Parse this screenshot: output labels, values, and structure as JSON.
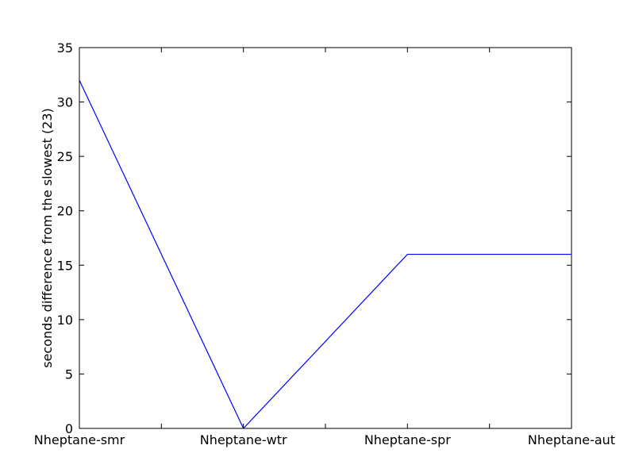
{
  "chart_data": {
    "type": "line",
    "title": "",
    "xlabel": "",
    "ylabel": "seconds difference from the slowest (23)",
    "categories": [
      "Nheptane-smr",
      "Nheptane-wtr",
      "Nheptane-spr",
      "Nheptane-aut"
    ],
    "x_ticks": [
      0,
      0.5,
      1,
      1.5,
      2,
      2.5,
      3
    ],
    "y_ticks": [
      0,
      5,
      10,
      15,
      20,
      25,
      30,
      35
    ],
    "ylim": [
      0,
      35
    ],
    "xlim": [
      0,
      3
    ],
    "grid": false,
    "series": [
      {
        "values": [
          32,
          0,
          16,
          16
        ],
        "color": "#0000ff"
      }
    ]
  }
}
